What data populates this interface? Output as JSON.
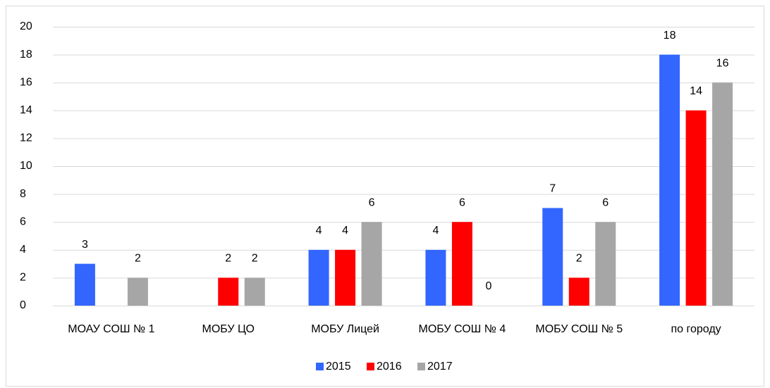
{
  "chart_data": {
    "type": "bar",
    "categories": [
      "МОАУ СОШ № 1",
      "МОБУ ЦО",
      "МОБУ Лицей",
      "МОБУ СОШ № 4",
      "МОБУ СОШ № 5",
      "по городу"
    ],
    "series": [
      {
        "name": "2015",
        "color": "#3366ff",
        "values": [
          3,
          null,
          4,
          4,
          7,
          18
        ]
      },
      {
        "name": "2016",
        "color": "#ff0000",
        "values": [
          null,
          2,
          4,
          6,
          2,
          14
        ]
      },
      {
        "name": "2017",
        "color": "#a6a6a6",
        "values": [
          2,
          2,
          6,
          0,
          6,
          16
        ]
      }
    ],
    "ylim": [
      0,
      20
    ],
    "yticks": [
      0,
      2,
      4,
      6,
      8,
      10,
      12,
      14,
      16,
      18,
      20
    ],
    "grid": true,
    "legend": "bottom"
  }
}
